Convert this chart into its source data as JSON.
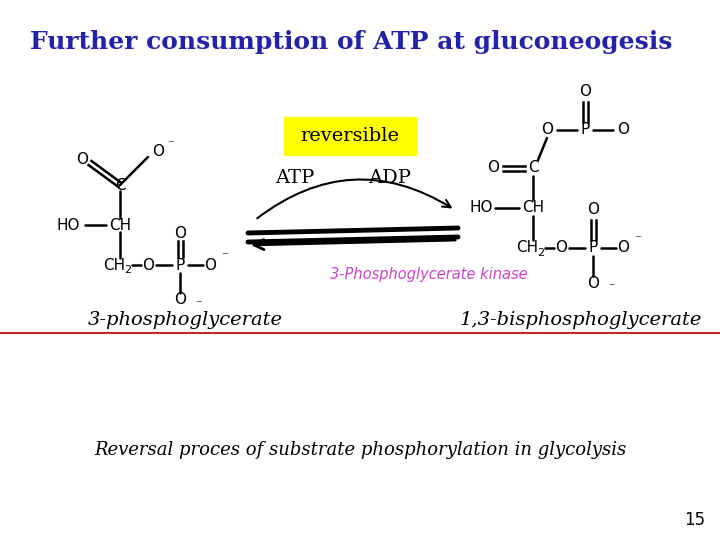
{
  "title": "Further consumption of ATP at gluconeogesis",
  "title_color": "#2222aa",
  "title_fontsize": 18,
  "background_color": "#ffffff",
  "reversible_label": "reversible",
  "reversible_bg": "#ffff00",
  "atp_label": "ATP",
  "adp_label": "ADP",
  "enzyme_label": "3-Phosphoglycerate kinase",
  "enzyme_color": "#cc44cc",
  "left_label": "3-phosphoglycerate",
  "right_label": "1,3-bisphosphoglycerate",
  "bottom_box_text": "Reversal proces of substrate phosphorylation in glycolysis",
  "bottom_box_color": "#cc2222",
  "page_number": "15",
  "mol_color": "#000000"
}
